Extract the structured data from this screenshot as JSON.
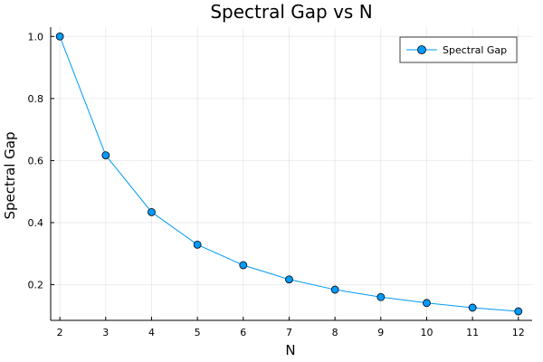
{
  "chart_data": {
    "type": "line",
    "title": "Spectral Gap vs N",
    "xlabel": "N",
    "ylabel": "Spectral Gap",
    "x": [
      2,
      3,
      4,
      5,
      6,
      7,
      8,
      9,
      10,
      11,
      12
    ],
    "series": [
      {
        "name": "Spectral Gap",
        "values": [
          1.0,
          0.617,
          0.434,
          0.329,
          0.263,
          0.217,
          0.184,
          0.16,
          0.141,
          0.126,
          0.114
        ],
        "color": "#009AFA",
        "marker": "circle"
      }
    ],
    "xlim": [
      1.8,
      12.3
    ],
    "ylim": [
      0.085,
      1.03
    ],
    "xticks": [
      2,
      3,
      4,
      5,
      6,
      7,
      8,
      9,
      10,
      11,
      12
    ],
    "yticks": [
      0.2,
      0.4,
      0.6,
      0.8,
      1.0
    ],
    "ytick_labels": [
      "0.2",
      "0.4",
      "0.6",
      "0.8",
      "1.0"
    ],
    "grid": true,
    "legend": "top-right"
  }
}
